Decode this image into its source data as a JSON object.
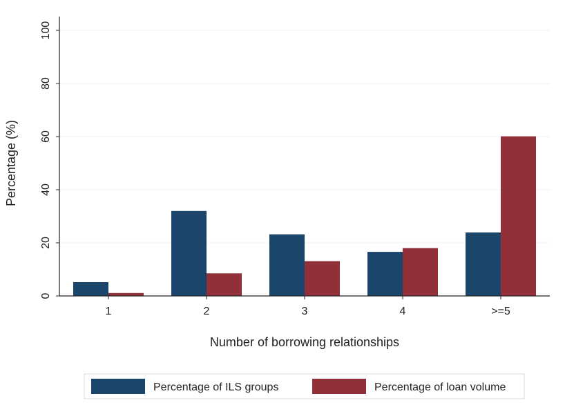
{
  "chart_data": {
    "type": "bar",
    "title": "",
    "xlabel": "Number of borrowing relationships",
    "ylabel": "Percentage (%)",
    "categories": [
      "1",
      "2",
      "3",
      "4",
      ">=5"
    ],
    "series": [
      {
        "name": "Percentage of ILS groups",
        "color": "#1b456a",
        "values": [
          5.2,
          32,
          23.2,
          16.6,
          23.9
        ]
      },
      {
        "name": "Percentage of loan volume",
        "color": "#913038",
        "values": [
          1.1,
          8.5,
          13.1,
          18,
          60.1
        ]
      }
    ],
    "ylim": [
      0,
      100
    ],
    "yticks": [
      0,
      20,
      40,
      60,
      80,
      100
    ],
    "grid": true,
    "legend_position": "bottom"
  }
}
